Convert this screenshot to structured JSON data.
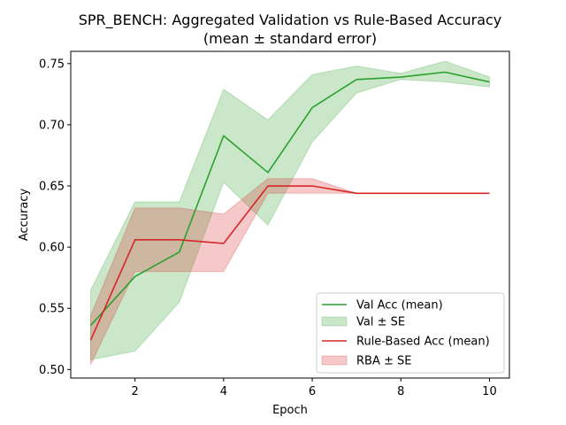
{
  "chart_data": {
    "type": "line",
    "title": "SPR_BENCH: Aggregated Validation vs Rule-Based Accuracy",
    "subtitle": "(mean ± standard error)",
    "xlabel": "Epoch",
    "ylabel": "Accuracy",
    "xlim": [
      0.55,
      10.45
    ],
    "ylim": [
      0.493,
      0.76
    ],
    "xticks": [
      2,
      4,
      6,
      8,
      10
    ],
    "yticks": [
      0.5,
      0.55,
      0.6,
      0.65,
      0.7,
      0.75
    ],
    "ytick_labels": [
      "0.50",
      "0.55",
      "0.60",
      "0.65",
      "0.70",
      "0.75"
    ],
    "grid": false,
    "legend_position": "lower-right",
    "x": [
      1,
      2,
      3,
      4,
      5,
      6,
      7,
      8,
      9,
      10
    ],
    "series": [
      {
        "name": "Val Acc (mean)",
        "band_name": "Val ± SE",
        "color": "#2ca02c",
        "values": [
          0.536,
          0.576,
          0.596,
          0.691,
          0.661,
          0.714,
          0.737,
          0.739,
          0.743,
          0.735
        ],
        "lower": [
          0.508,
          0.515,
          0.555,
          0.653,
          0.618,
          0.686,
          0.726,
          0.737,
          0.735,
          0.731
        ],
        "upper": [
          0.565,
          0.637,
          0.637,
          0.729,
          0.704,
          0.741,
          0.748,
          0.742,
          0.752,
          0.739
        ]
      },
      {
        "name": "Rule-Based Acc (mean)",
        "band_name": "RBA ± SE",
        "color": "#d62728",
        "values": [
          0.524,
          0.606,
          0.606,
          0.603,
          0.65,
          0.65,
          0.644,
          0.644,
          0.644,
          0.644
        ],
        "lower": [
          0.504,
          0.58,
          0.58,
          0.58,
          0.644,
          0.644,
          0.644,
          0.644,
          0.644,
          0.644
        ],
        "upper": [
          0.544,
          0.632,
          0.632,
          0.627,
          0.656,
          0.656,
          0.644,
          0.644,
          0.644,
          0.644
        ]
      }
    ]
  }
}
